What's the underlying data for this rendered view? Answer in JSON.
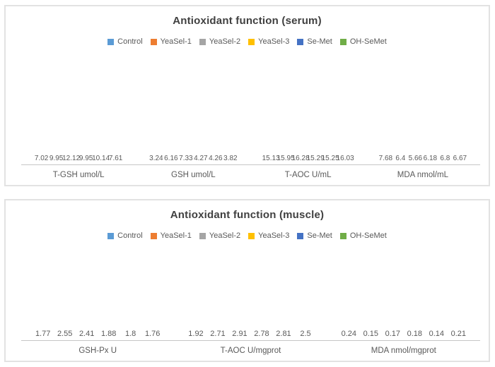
{
  "palette": {
    "title_color": "#404040",
    "label_color": "#595959",
    "axis_color": "#c6c6c6",
    "panel_border": "#e2e2e2",
    "background": "#ffffff"
  },
  "chart_data": [
    {
      "type": "bar",
      "title": "Antioxidant function (serum)",
      "legend_position": "top",
      "grid": false,
      "data_labels_shown": true,
      "ylim": [
        0,
        18
      ],
      "categories": [
        "T-GSH umol/L",
        "GSH umol/L",
        "T-AOC U/mL",
        "MDA nmol/mL"
      ],
      "series": [
        {
          "name": "Control",
          "color": "#5B9BD5",
          "values": [
            7.02,
            3.24,
            15.13,
            7.68
          ]
        },
        {
          "name": "YeaSel-1",
          "color": "#ED7D31",
          "values": [
            9.95,
            6.16,
            15.95,
            6.4
          ]
        },
        {
          "name": "YeaSel-2",
          "color": "#A5A5A5",
          "values": [
            12.12,
            7.33,
            16.28,
            5.66
          ]
        },
        {
          "name": "YeaSel-3",
          "color": "#FFC000",
          "values": [
            9.95,
            4.27,
            15.29,
            6.18
          ]
        },
        {
          "name": "Se-Met",
          "color": "#4472C4",
          "values": [
            10.14,
            4.26,
            15.25,
            6.8
          ]
        },
        {
          "name": "OH-SeMet",
          "color": "#70AD47",
          "values": [
            7.61,
            3.82,
            16.03,
            6.67
          ]
        }
      ]
    },
    {
      "type": "bar",
      "title": "Antioxidant function (muscle)",
      "legend_position": "top",
      "grid": false,
      "data_labels_shown": true,
      "ylim": [
        0,
        3.5
      ],
      "categories": [
        "GSH-Px U",
        "T-AOC U/mgprot",
        "MDA nmol/mgprot"
      ],
      "series": [
        {
          "name": "Control",
          "color": "#5B9BD5",
          "values": [
            1.77,
            1.92,
            0.24
          ]
        },
        {
          "name": "YeaSel-1",
          "color": "#ED7D31",
          "values": [
            2.55,
            2.71,
            0.15
          ]
        },
        {
          "name": "YeaSel-2",
          "color": "#A5A5A5",
          "values": [
            2.41,
            2.91,
            0.17
          ]
        },
        {
          "name": "YeaSel-3",
          "color": "#FFC000",
          "values": [
            1.88,
            2.78,
            0.18
          ]
        },
        {
          "name": "Se-Met",
          "color": "#4472C4",
          "values": [
            1.8,
            2.81,
            0.14
          ]
        },
        {
          "name": "OH-SeMet",
          "color": "#70AD47",
          "values": [
            1.76,
            2.5,
            0.21
          ]
        }
      ]
    }
  ]
}
